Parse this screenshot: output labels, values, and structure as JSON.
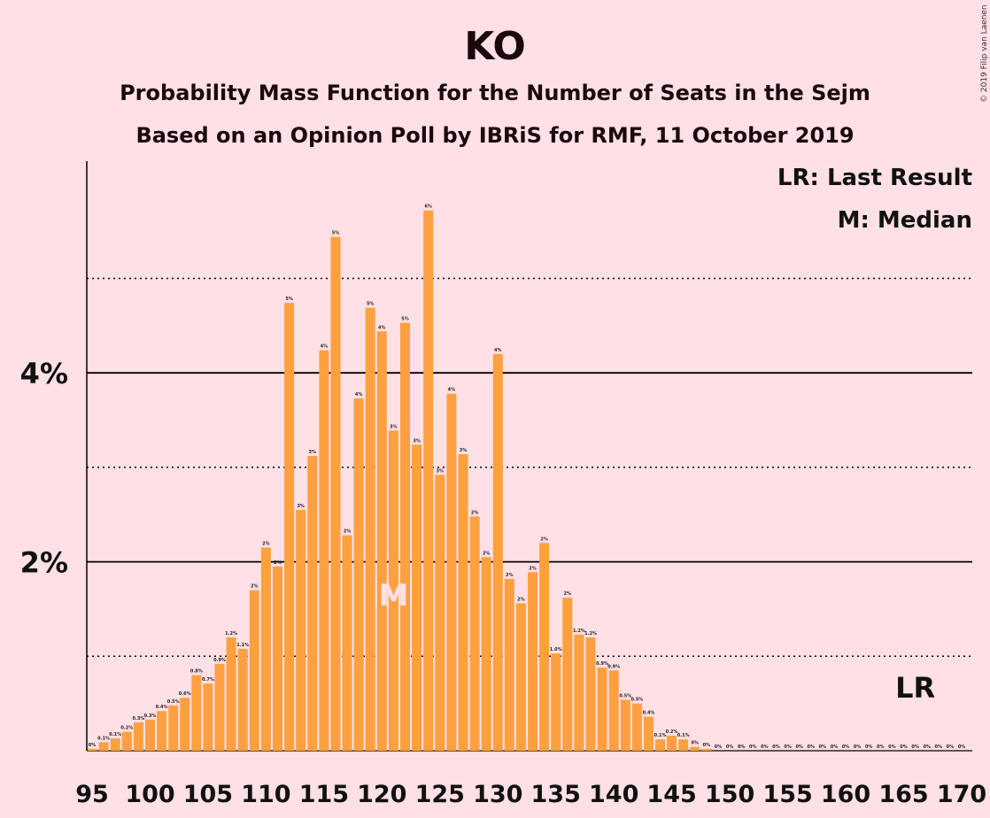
{
  "chart_data": {
    "type": "bar",
    "title": "KO",
    "subtitle": "Probability Mass Function for the Number of Seats in the Sejm",
    "subtitle2": "Based on an Opinion Poll by IBRiS for RMF, 11 October 2019",
    "credit": "© 2019 Filip van Laenen",
    "legend": {
      "lr": "LR: Last Result",
      "m": "M: Median",
      "placement": "top-right"
    },
    "x_min": 95,
    "x_max": 170,
    "x_ticks": [
      95,
      100,
      105,
      110,
      115,
      120,
      125,
      130,
      135,
      140,
      145,
      150,
      155,
      160,
      165,
      170
    ],
    "y_ticks": [
      {
        "value": 2,
        "label": "2%"
      },
      {
        "value": 4,
        "label": "4%"
      }
    ],
    "ylim": [
      0,
      6.2
    ],
    "solid_gridlines": [
      2,
      4
    ],
    "dotted_gridlines": [
      1,
      3,
      5
    ],
    "bar_color": "#ffa040",
    "median_seat": 121,
    "median_label": "M",
    "last_result_seat": 166,
    "last_result_label": "LR",
    "bars": [
      {
        "seat": 95,
        "value": 0.02,
        "label": "0%"
      },
      {
        "seat": 96,
        "value": 0.09,
        "label": "0.1%"
      },
      {
        "seat": 97,
        "value": 0.13,
        "label": "0.1%"
      },
      {
        "seat": 98,
        "value": 0.2,
        "label": "0.2%"
      },
      {
        "seat": 99,
        "value": 0.3,
        "label": "0.3%"
      },
      {
        "seat": 100,
        "value": 0.33,
        "label": "0.3%"
      },
      {
        "seat": 101,
        "value": 0.42,
        "label": "0.4%"
      },
      {
        "seat": 102,
        "value": 0.48,
        "label": "0.5%"
      },
      {
        "seat": 103,
        "value": 0.56,
        "label": "0.6%"
      },
      {
        "seat": 104,
        "value": 0.8,
        "label": "0.8%"
      },
      {
        "seat": 105,
        "value": 0.71,
        "label": "0.7%"
      },
      {
        "seat": 106,
        "value": 0.92,
        "label": "0.9%"
      },
      {
        "seat": 107,
        "value": 1.2,
        "label": "1.2%"
      },
      {
        "seat": 108,
        "value": 1.08,
        "label": "1.1%"
      },
      {
        "seat": 109,
        "value": 1.7,
        "label": "2%"
      },
      {
        "seat": 110,
        "value": 2.15,
        "label": "2%"
      },
      {
        "seat": 111,
        "value": 1.95,
        "label": "2%"
      },
      {
        "seat": 112,
        "value": 4.74,
        "label": "5%"
      },
      {
        "seat": 113,
        "value": 2.55,
        "label": "3%"
      },
      {
        "seat": 114,
        "value": 3.12,
        "label": "3%"
      },
      {
        "seat": 115,
        "value": 4.24,
        "label": "4%"
      },
      {
        "seat": 116,
        "value": 5.44,
        "label": "5%"
      },
      {
        "seat": 117,
        "value": 2.28,
        "label": "2%"
      },
      {
        "seat": 118,
        "value": 3.73,
        "label": "4%"
      },
      {
        "seat": 119,
        "value": 4.69,
        "label": "5%"
      },
      {
        "seat": 120,
        "value": 4.44,
        "label": "4%"
      },
      {
        "seat": 121,
        "value": 3.39,
        "label": "3%"
      },
      {
        "seat": 122,
        "value": 4.53,
        "label": "5%"
      },
      {
        "seat": 123,
        "value": 3.24,
        "label": "3%"
      },
      {
        "seat": 124,
        "value": 5.72,
        "label": "6%"
      },
      {
        "seat": 125,
        "value": 2.92,
        "label": "3%"
      },
      {
        "seat": 126,
        "value": 3.78,
        "label": "4%"
      },
      {
        "seat": 127,
        "value": 3.14,
        "label": "3%"
      },
      {
        "seat": 128,
        "value": 2.48,
        "label": "2%"
      },
      {
        "seat": 129,
        "value": 2.05,
        "label": "2%"
      },
      {
        "seat": 130,
        "value": 4.2,
        "label": "4%"
      },
      {
        "seat": 131,
        "value": 1.82,
        "label": "2%"
      },
      {
        "seat": 132,
        "value": 1.56,
        "label": "2%"
      },
      {
        "seat": 133,
        "value": 1.89,
        "label": "2%"
      },
      {
        "seat": 134,
        "value": 2.2,
        "label": "2%"
      },
      {
        "seat": 135,
        "value": 1.03,
        "label": "1.0%"
      },
      {
        "seat": 136,
        "value": 1.62,
        "label": "2%"
      },
      {
        "seat": 137,
        "value": 1.23,
        "label": "1.2%"
      },
      {
        "seat": 138,
        "value": 1.2,
        "label": "1.2%"
      },
      {
        "seat": 139,
        "value": 0.88,
        "label": "0.9%"
      },
      {
        "seat": 140,
        "value": 0.85,
        "label": "0.9%"
      },
      {
        "seat": 141,
        "value": 0.54,
        "label": "0.5%"
      },
      {
        "seat": 142,
        "value": 0.5,
        "label": "0.5%"
      },
      {
        "seat": 143,
        "value": 0.36,
        "label": "0.4%"
      },
      {
        "seat": 144,
        "value": 0.12,
        "label": "0.1%"
      },
      {
        "seat": 145,
        "value": 0.16,
        "label": "0.2%"
      },
      {
        "seat": 146,
        "value": 0.12,
        "label": "0.1%"
      },
      {
        "seat": 147,
        "value": 0.04,
        "label": "0%"
      },
      {
        "seat": 148,
        "value": 0.02,
        "label": "0%"
      },
      {
        "seat": 149,
        "value": 0,
        "label": "0%"
      },
      {
        "seat": 150,
        "value": 0,
        "label": "0%"
      },
      {
        "seat": 151,
        "value": 0,
        "label": "0%"
      },
      {
        "seat": 152,
        "value": 0,
        "label": "0%"
      },
      {
        "seat": 153,
        "value": 0,
        "label": "0%"
      },
      {
        "seat": 154,
        "value": 0,
        "label": "0%"
      },
      {
        "seat": 155,
        "value": 0,
        "label": "0%"
      },
      {
        "seat": 156,
        "value": 0,
        "label": "0%"
      },
      {
        "seat": 157,
        "value": 0,
        "label": "0%"
      },
      {
        "seat": 158,
        "value": 0,
        "label": "0%"
      },
      {
        "seat": 159,
        "value": 0,
        "label": "0%"
      },
      {
        "seat": 160,
        "value": 0,
        "label": "0%"
      },
      {
        "seat": 161,
        "value": 0,
        "label": "0%"
      },
      {
        "seat": 162,
        "value": 0,
        "label": "0%"
      },
      {
        "seat": 163,
        "value": 0,
        "label": "0%"
      },
      {
        "seat": 164,
        "value": 0,
        "label": "0%"
      },
      {
        "seat": 165,
        "value": 0,
        "label": "0%"
      },
      {
        "seat": 166,
        "value": 0,
        "label": "0%"
      },
      {
        "seat": 167,
        "value": 0,
        "label": "0%"
      },
      {
        "seat": 168,
        "value": 0,
        "label": "0%"
      },
      {
        "seat": 169,
        "value": 0,
        "label": "0%"
      },
      {
        "seat": 170,
        "value": 0,
        "label": "0%"
      }
    ]
  }
}
